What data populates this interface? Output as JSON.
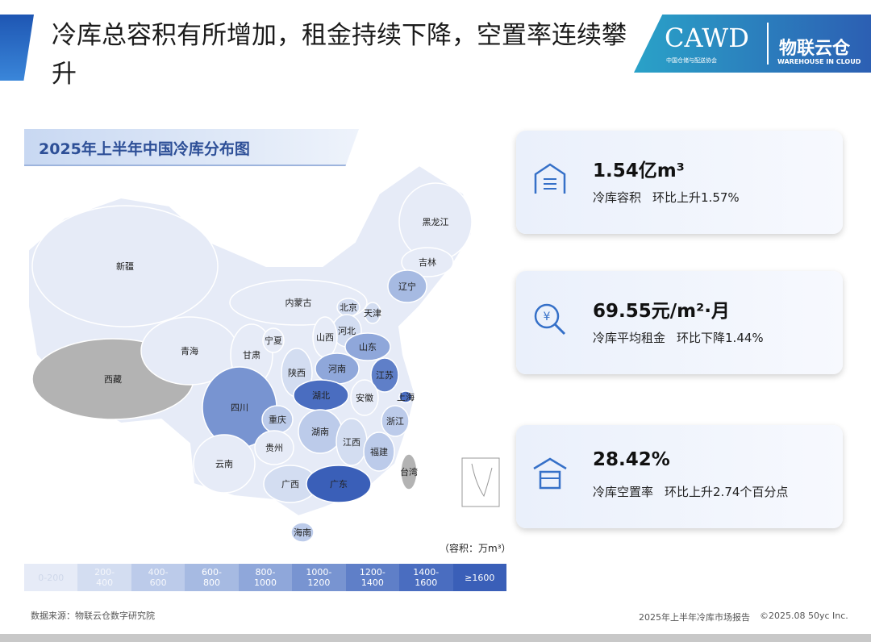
{
  "header": {
    "title": "冷库总容积有所增加，租金持续下降，空置率连续攀升",
    "logos": [
      "CAWD",
      "中国仓储与配送协会",
      "物联云仓",
      "WAREHOUSE IN CLOUD"
    ]
  },
  "map": {
    "title": "2025年上半年中国冷库分布图",
    "unit": "（容积：万m³）",
    "legend": [
      {
        "label": "0-200",
        "color": "#e6ebf7"
      },
      {
        "label": "200-400",
        "color": "#d3ddf1"
      },
      {
        "label": "400-600",
        "color": "#bccbea"
      },
      {
        "label": "600-800",
        "color": "#a6bae2"
      },
      {
        "label": "800-1000",
        "color": "#8fa7da"
      },
      {
        "label": "1000-1200",
        "color": "#7894d1"
      },
      {
        "label": "1200-1400",
        "color": "#5f7fc8"
      },
      {
        "label": "1400-1600",
        "color": "#4a6dc0"
      },
      {
        "label": "≥1600",
        "color": "#3a5fb8"
      }
    ],
    "regions": [
      {
        "name": "新疆",
        "color": "#e6ebf7"
      },
      {
        "name": "西藏",
        "color": "#b3b3b3"
      },
      {
        "name": "青海",
        "color": "#e6ebf7"
      },
      {
        "name": "甘肃",
        "color": "#e6ebf7"
      },
      {
        "name": "内蒙古",
        "color": "#e6ebf7"
      },
      {
        "name": "黑龙江",
        "color": "#e6ebf7"
      },
      {
        "name": "吉林",
        "color": "#e6ebf7"
      },
      {
        "name": "辽宁",
        "color": "#a6bae2"
      },
      {
        "name": "北京",
        "color": "#d3ddf1"
      },
      {
        "name": "天津",
        "color": "#d3ddf1"
      },
      {
        "name": "河北",
        "color": "#d3ddf1"
      },
      {
        "name": "山西",
        "color": "#e6ebf7"
      },
      {
        "name": "宁夏",
        "color": "#e6ebf7"
      },
      {
        "name": "山东",
        "color": "#8fa7da"
      },
      {
        "name": "河南",
        "color": "#8fa7da"
      },
      {
        "name": "陕西",
        "color": "#d3ddf1"
      },
      {
        "name": "江苏",
        "color": "#5f7fc8"
      },
      {
        "name": "上海",
        "color": "#4a6dc0"
      },
      {
        "name": "安徽",
        "color": "#e6ebf7"
      },
      {
        "name": "湖北",
        "color": "#4a6dc0"
      },
      {
        "name": "四川",
        "color": "#7894d1"
      },
      {
        "name": "重庆",
        "color": "#bccbea"
      },
      {
        "name": "浙江",
        "color": "#bccbea"
      },
      {
        "name": "湖南",
        "color": "#bccbea"
      },
      {
        "name": "江西",
        "color": "#d3ddf1"
      },
      {
        "name": "福建",
        "color": "#bccbea"
      },
      {
        "name": "贵州",
        "color": "#e6ebf7"
      },
      {
        "name": "云南",
        "color": "#e6ebf7"
      },
      {
        "name": "广西",
        "color": "#d3ddf1"
      },
      {
        "name": "广东",
        "color": "#3a5fb8"
      },
      {
        "name": "海南",
        "color": "#bccbea"
      },
      {
        "name": "台湾",
        "color": "#b3b3b3"
      }
    ]
  },
  "cards": [
    {
      "value": "1.54亿m³",
      "label": "冷库容积",
      "change": "环比上升1.57%"
    },
    {
      "value": "69.55元/m²·月",
      "label": "冷库平均租金",
      "change": "环比下降1.44%"
    },
    {
      "value": "28.42%",
      "label": "冷库空置率",
      "change": "环比上升2.74个百分点"
    }
  ],
  "footer": {
    "source": "数据来源：物联云仓数字研究院",
    "report": "2025年上半年冷库市场报告",
    "copyright": "©2025.08 50yc Inc."
  }
}
